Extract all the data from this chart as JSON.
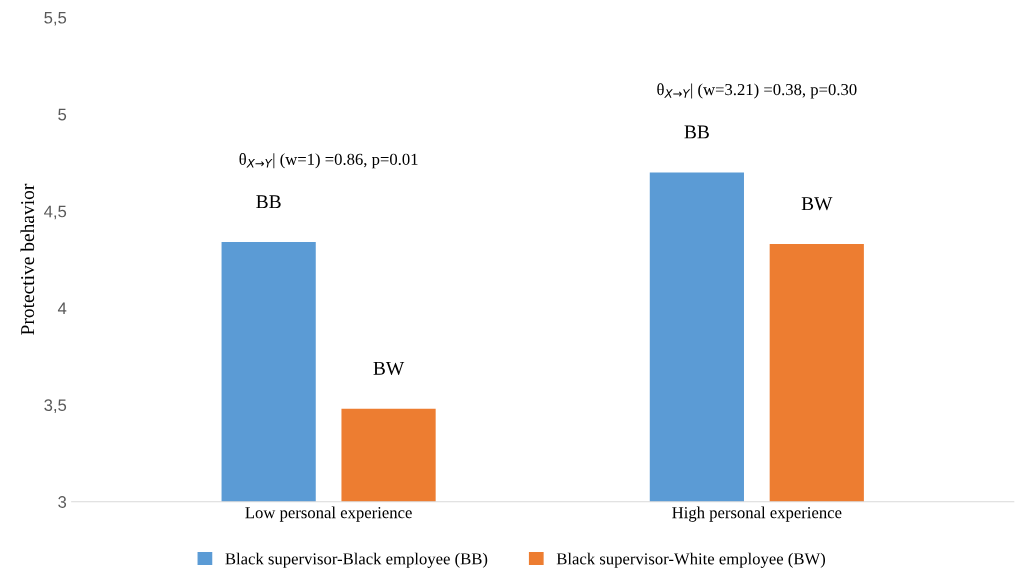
{
  "chart_data": {
    "type": "bar",
    "ylabel": "Protective behavior",
    "categories": [
      "Low personal experience",
      "High personal experience"
    ],
    "series": [
      {
        "name": "Black supervisor-Black employee (BB)",
        "color": "#5b9bd5",
        "values": [
          4.34,
          4.7
        ],
        "value_labels": [
          "BB",
          "BB"
        ]
      },
      {
        "name": "Black supervisor-White employee (BW)",
        "color": "#ed7d31",
        "values": [
          3.48,
          4.33
        ],
        "value_labels": [
          "BW",
          "BW"
        ]
      }
    ],
    "ylim": [
      3,
      5.5
    ],
    "yticks": [
      {
        "value": 3,
        "label": "3"
      },
      {
        "value": 3.5,
        "label": "3,5"
      },
      {
        "value": 4,
        "label": "4"
      },
      {
        "value": 4.5,
        "label": "4,5"
      },
      {
        "value": 5,
        "label": "5"
      },
      {
        "value": 5.5,
        "label": "5,5"
      }
    ],
    "annotations": [
      "θ$_{X→Y}$| (w=1) =0.86, p=0.01",
      "θ$_{X→Y}$| (w=3.21) =0.38, p=0.30"
    ],
    "grid": false,
    "legend": "bottom"
  }
}
